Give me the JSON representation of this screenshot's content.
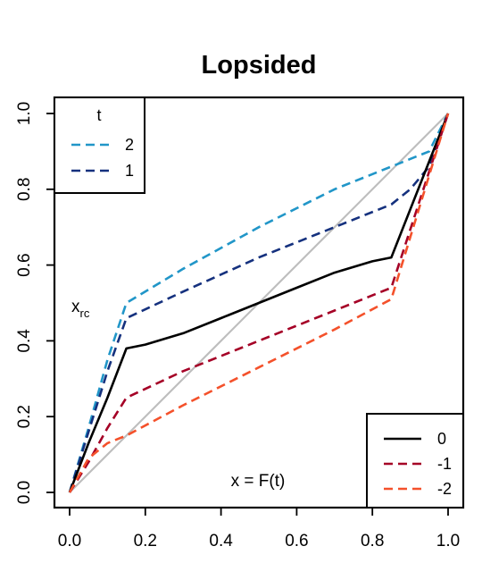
{
  "chart_data": {
    "type": "line",
    "title": "Lopsided",
    "xlim": [
      0,
      1
    ],
    "ylim": [
      0,
      1
    ],
    "x_ticks": [
      "0.0",
      "0.2",
      "0.4",
      "0.6",
      "0.8",
      "1.0"
    ],
    "y_ticks": [
      "0.0",
      "0.2",
      "0.4",
      "0.6",
      "0.8",
      "1.0"
    ],
    "grid": false,
    "legend_upper": {
      "placement": "top-left",
      "title": "t",
      "entries": [
        {
          "label": "2",
          "color": "#2196c8",
          "dash": true
        },
        {
          "label": "1",
          "color": "#15317e",
          "dash": true
        }
      ]
    },
    "legend_lower": {
      "placement": "bottom-right",
      "entries": [
        {
          "label": "0",
          "color": "#000000",
          "dash": false
        },
        {
          "label": "-1",
          "color": "#a50026",
          "dash": true
        },
        {
          "label": "-2",
          "color": "#f4512b",
          "dash": true
        }
      ]
    },
    "annotations": {
      "ylabel_base": "x",
      "ylabel_sub": "rc",
      "xlabel": "x = F(t)"
    },
    "reference_line": {
      "x": [
        0,
        1
      ],
      "y": [
        0,
        1
      ],
      "color": "#bebebe"
    },
    "series": [
      {
        "name": "2",
        "color": "#2196c8",
        "dash": true,
        "x": [
          0.0,
          0.05,
          0.1,
          0.15,
          0.3,
          0.5,
          0.7,
          0.85,
          0.95,
          1.0
        ],
        "y": [
          0.0,
          0.17,
          0.35,
          0.5,
          0.59,
          0.7,
          0.8,
          0.86,
          0.9,
          1.0
        ]
      },
      {
        "name": "1",
        "color": "#15317e",
        "dash": true,
        "x": [
          0.0,
          0.05,
          0.1,
          0.15,
          0.3,
          0.5,
          0.7,
          0.85,
          0.9,
          0.95,
          1.0
        ],
        "y": [
          0.0,
          0.16,
          0.32,
          0.46,
          0.53,
          0.62,
          0.7,
          0.76,
          0.8,
          0.86,
          1.0
        ]
      },
      {
        "name": "0",
        "color": "#000000",
        "dash": false,
        "x": [
          0.0,
          0.05,
          0.1,
          0.15,
          0.2,
          0.3,
          0.4,
          0.5,
          0.6,
          0.7,
          0.8,
          0.85,
          1.0
        ],
        "y": [
          0.0,
          0.13,
          0.25,
          0.38,
          0.39,
          0.42,
          0.46,
          0.5,
          0.54,
          0.58,
          0.61,
          0.62,
          1.0
        ]
      },
      {
        "name": "-1",
        "color": "#a50026",
        "dash": true,
        "x": [
          0.0,
          0.05,
          0.1,
          0.15,
          0.3,
          0.5,
          0.7,
          0.85,
          1.0
        ],
        "y": [
          0.0,
          0.08,
          0.17,
          0.25,
          0.32,
          0.4,
          0.48,
          0.54,
          1.0
        ]
      },
      {
        "name": "-2",
        "color": "#f4512b",
        "dash": true,
        "x": [
          0.0,
          0.05,
          0.1,
          0.15,
          0.3,
          0.5,
          0.7,
          0.85,
          1.0
        ],
        "y": [
          0.0,
          0.09,
          0.13,
          0.15,
          0.23,
          0.33,
          0.43,
          0.51,
          1.0
        ]
      }
    ]
  }
}
